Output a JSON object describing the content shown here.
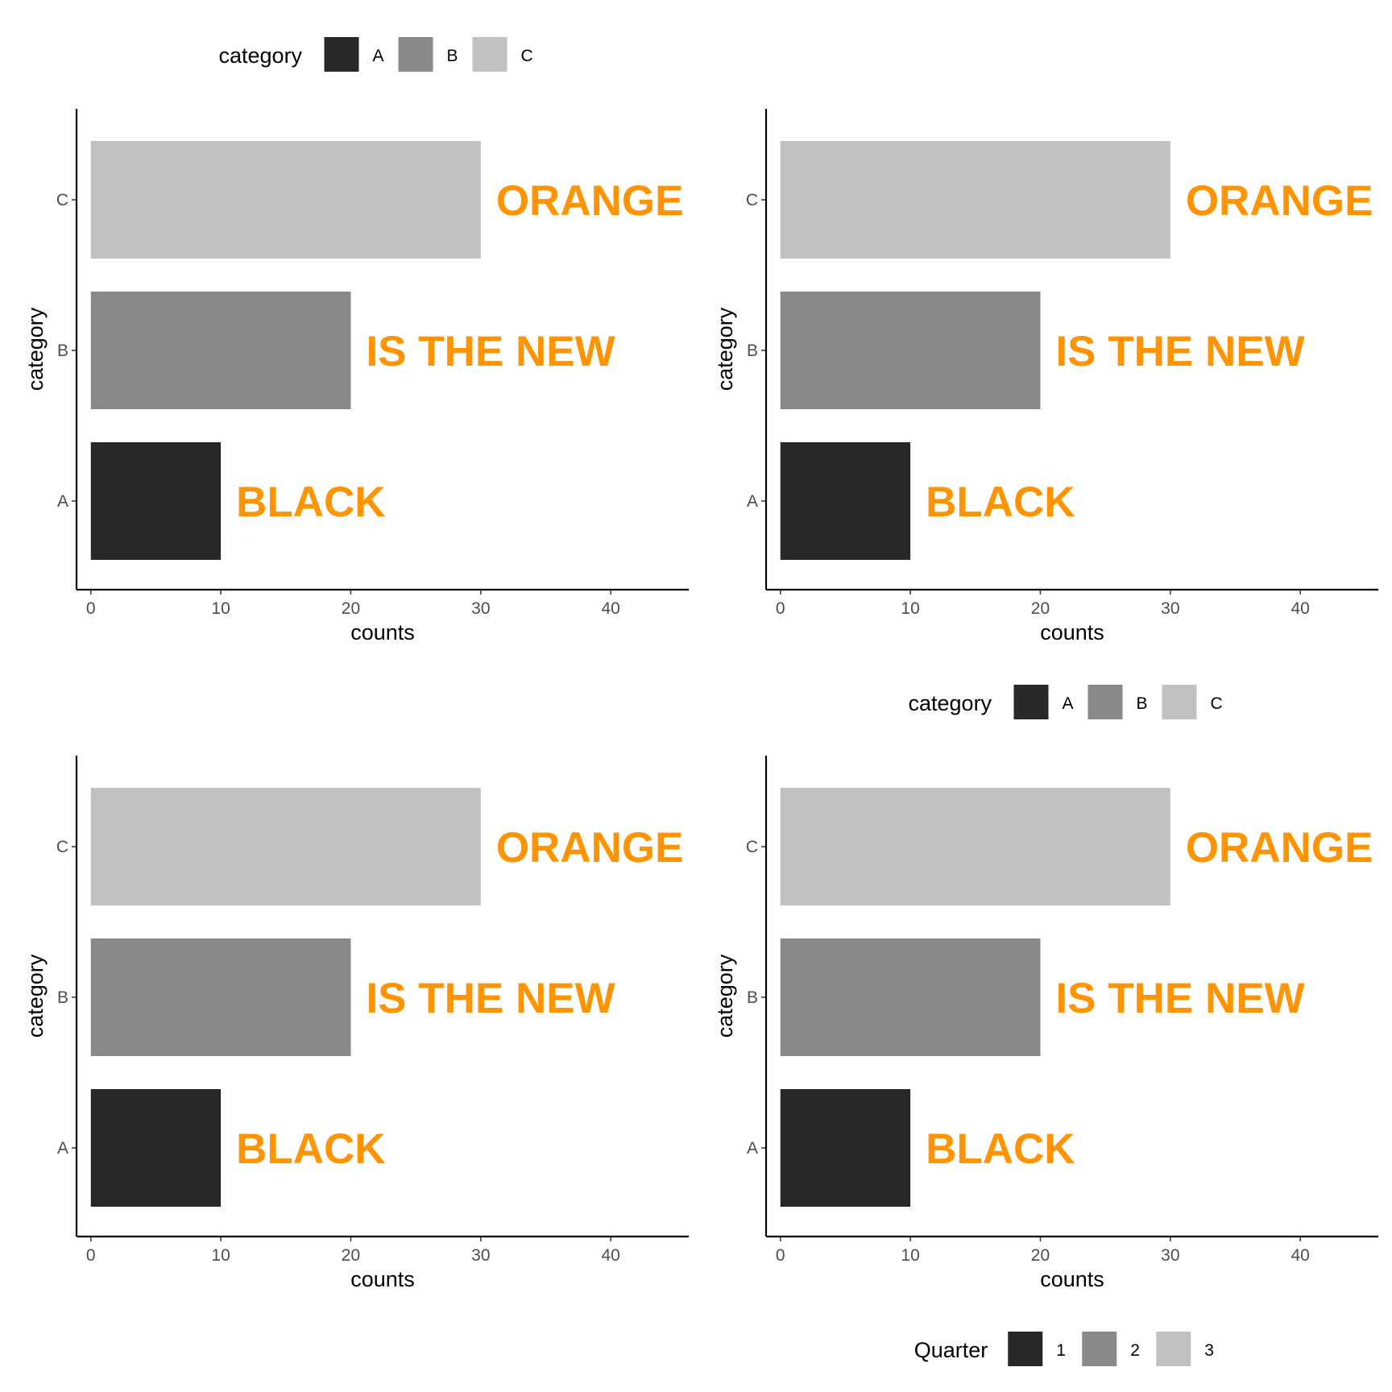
{
  "colors": {
    "annotation": "#ff9400",
    "axis_line": "#000000",
    "tick": "#333333"
  },
  "chart_data": [
    {
      "type": "bar",
      "orientation": "horizontal",
      "categories": [
        "A",
        "B",
        "C"
      ],
      "values": [
        10,
        20,
        30
      ],
      "bar_colors": [
        "#282828",
        "#898989",
        "#c1c1c1"
      ],
      "annotations": [
        "BLACK",
        "IS THE NEW",
        "ORANGE"
      ],
      "xlabel": "counts",
      "ylabel": "category",
      "xlim": [
        -1.1,
        46
      ],
      "xticks": [
        0,
        10,
        20,
        30,
        40
      ],
      "grid": false,
      "legend": {
        "title": "category",
        "placement": "top",
        "entries": [
          {
            "label": "A",
            "color": "#282828"
          },
          {
            "label": "B",
            "color": "#898989"
          },
          {
            "label": "C",
            "color": "#c1c1c1"
          }
        ]
      }
    },
    {
      "type": "bar",
      "orientation": "horizontal",
      "categories": [
        "A",
        "B",
        "C"
      ],
      "values": [
        10,
        20,
        30
      ],
      "bar_colors": [
        "#282828",
        "#898989",
        "#c1c1c1"
      ],
      "annotations": [
        "BLACK",
        "IS THE NEW",
        "ORANGE"
      ],
      "xlabel": "counts",
      "ylabel": "category",
      "xlim": [
        -1.1,
        46
      ],
      "xticks": [
        0,
        10,
        20,
        30,
        40
      ],
      "grid": false,
      "legend": {
        "title": "category",
        "placement": "bottom",
        "entries": [
          {
            "label": "A",
            "color": "#282828"
          },
          {
            "label": "B",
            "color": "#898989"
          },
          {
            "label": "C",
            "color": "#c1c1c1"
          }
        ]
      }
    },
    {
      "type": "bar",
      "orientation": "horizontal",
      "categories": [
        "A",
        "B",
        "C"
      ],
      "values": [
        10,
        20,
        30
      ],
      "bar_colors": [
        "#282828",
        "#898989",
        "#c1c1c1"
      ],
      "annotations": [
        "BLACK",
        "IS THE NEW",
        "ORANGE"
      ],
      "xlabel": "counts",
      "ylabel": "category",
      "xlim": [
        -1.1,
        46
      ],
      "xticks": [
        0,
        10,
        20,
        30,
        40
      ],
      "grid": false,
      "legend": null
    },
    {
      "type": "bar",
      "orientation": "horizontal",
      "categories": [
        "A",
        "B",
        "C"
      ],
      "values": [
        10,
        20,
        30
      ],
      "bar_colors": [
        "#282828",
        "#898989",
        "#c1c1c1"
      ],
      "annotations": [
        "BLACK",
        "IS THE NEW",
        "ORANGE"
      ],
      "xlabel": "counts",
      "ylabel": "category",
      "xlim": [
        -1.1,
        46
      ],
      "xticks": [
        0,
        10,
        20,
        30,
        40
      ],
      "grid": false,
      "legend": {
        "title": "Quarter",
        "placement": "bottom",
        "entries": [
          {
            "label": "1",
            "color": "#282828"
          },
          {
            "label": "2",
            "color": "#898989"
          },
          {
            "label": "3",
            "color": "#c1c1c1"
          }
        ]
      }
    }
  ]
}
